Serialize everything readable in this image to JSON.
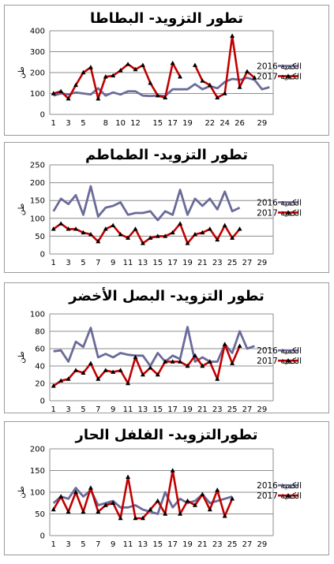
{
  "chart_data": [
    {
      "type": "line",
      "title": "تطور التزويد- البطاطا",
      "ylabel": "طن",
      "ylim": [
        0,
        400
      ],
      "yticks": [
        0,
        100,
        200,
        300,
        400
      ],
      "xticks": [
        1,
        3,
        5,
        8,
        10,
        12,
        15,
        17,
        19,
        22,
        24,
        26,
        29
      ],
      "grid": true,
      "legend": "right",
      "series": [
        {
          "name": "الكمية 2016",
          "color": "#6b6b9a",
          "marker": "none",
          "values": [
            90,
            100,
            95,
            105,
            100,
            95,
            125,
            90,
            105,
            95,
            110,
            110,
            90,
            88,
            90,
            88,
            120,
            120,
            120,
            145,
            120,
            135,
            125,
            155,
            170,
            165,
            175,
            165,
            120,
            130
          ]
        },
        {
          "name": "الكمية 2017",
          "color": "#c00000",
          "marker": "triangle",
          "values": [
            100,
            110,
            75,
            140,
            200,
            225,
            75,
            180,
            185,
            210,
            240,
            215,
            235,
            150,
            90,
            80,
            245,
            180,
            null,
            235,
            160,
            140,
            80,
            100,
            375,
            130,
            205,
            175
          ]
        }
      ]
    },
    {
      "type": "line",
      "title": "تطور التزويد- الطماطم",
      "ylabel": "طن",
      "ylim": [
        0,
        250
      ],
      "yticks": [
        0,
        50,
        100,
        150,
        200,
        250
      ],
      "xticks": [
        1,
        3,
        5,
        7,
        9,
        11,
        13,
        15,
        17,
        19,
        21,
        23,
        25,
        27,
        29
      ],
      "grid": true,
      "legend": "right",
      "series": [
        {
          "name": "الكمية 2016",
          "color": "#6b6b9a",
          "marker": "none",
          "values": [
            120,
            155,
            140,
            165,
            110,
            190,
            105,
            130,
            135,
            145,
            110,
            115,
            115,
            120,
            95,
            120,
            110,
            180,
            110,
            155,
            135,
            155,
            125,
            175,
            120,
            130
          ]
        },
        {
          "name": "الكمية 2017",
          "color": "#c00000",
          "marker": "triangle",
          "values": [
            70,
            85,
            70,
            70,
            60,
            55,
            35,
            70,
            80,
            55,
            45,
            70,
            30,
            45,
            50,
            50,
            60,
            85,
            30,
            55,
            60,
            70,
            40,
            80,
            45,
            70
          ]
        }
      ]
    },
    {
      "type": "line",
      "title": "تطور التزويد- البصل الأخضر",
      "ylabel": "طن",
      "ylim": [
        0,
        100
      ],
      "yticks": [
        0,
        20,
        40,
        60,
        80,
        100
      ],
      "xticks": [
        1,
        3,
        5,
        7,
        9,
        11,
        13,
        15,
        17,
        19,
        21,
        23,
        25,
        27,
        29
      ],
      "grid": true,
      "legend": "right",
      "series": [
        {
          "name": "الكمية 2016",
          "color": "#6b6b9a",
          "marker": "none",
          "values": [
            57,
            58,
            45,
            68,
            62,
            84,
            50,
            54,
            50,
            55,
            53,
            52,
            52,
            40,
            55,
            45,
            52,
            48,
            85,
            45,
            50,
            45,
            45,
            65,
            55,
            80,
            60,
            63
          ]
        },
        {
          "name": "الكمية 2017",
          "color": "#c00000",
          "marker": "triangle",
          "values": [
            17,
            23,
            25,
            35,
            32,
            43,
            25,
            35,
            33,
            35,
            20,
            50,
            30,
            38,
            30,
            45,
            45,
            45,
            40,
            52,
            40,
            45,
            25,
            65,
            43,
            63
          ]
        }
      ]
    },
    {
      "type": "line",
      "title": "تطورالتزويد- الفلفل الحار",
      "ylabel": "طن",
      "ylim": [
        0,
        200
      ],
      "yticks": [
        0,
        50,
        100,
        150,
        200
      ],
      "xticks": [
        1,
        3,
        5,
        7,
        9,
        11,
        13,
        15,
        17,
        19,
        21,
        23,
        25,
        27,
        29
      ],
      "grid": true,
      "legend": "right",
      "series": [
        {
          "name": "الكمية 2016",
          "color": "#6b6b9a",
          "marker": "none",
          "values": [
            75,
            90,
            85,
            110,
            90,
            105,
            70,
            75,
            80,
            65,
            65,
            70,
            60,
            55,
            50,
            100,
            65,
            85,
            75,
            80,
            95,
            75,
            80,
            85,
            90
          ]
        },
        {
          "name": "الكمية 2017",
          "color": "#c00000",
          "marker": "triangle",
          "values": [
            60,
            90,
            55,
            100,
            55,
            110,
            55,
            70,
            75,
            40,
            135,
            40,
            40,
            60,
            80,
            50,
            150,
            50,
            80,
            70,
            95,
            60,
            105,
            45,
            85
          ]
        }
      ]
    }
  ]
}
